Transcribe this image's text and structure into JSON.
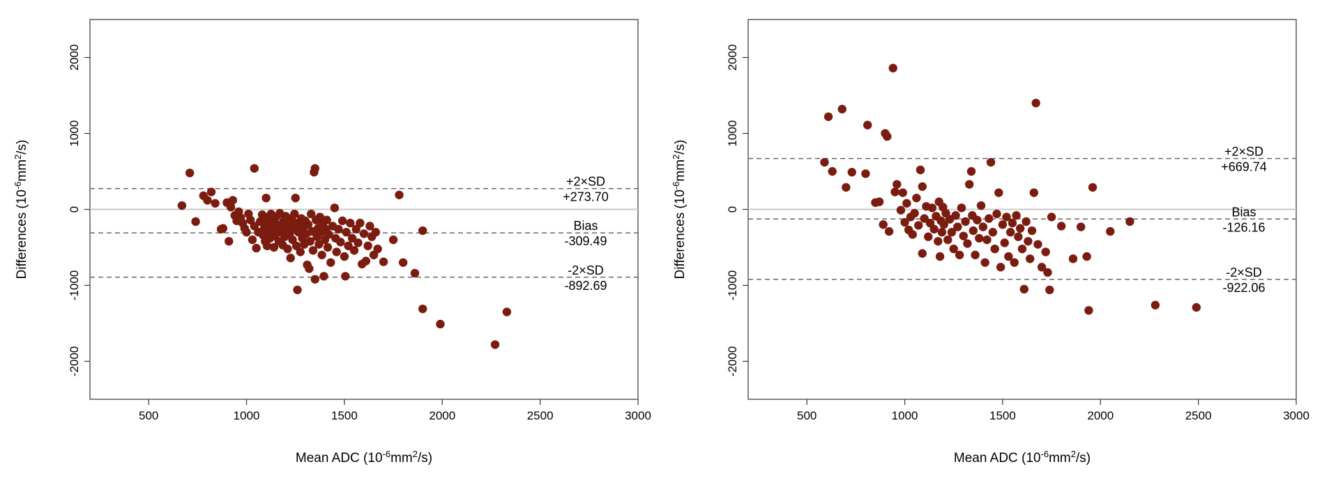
{
  "chart_data": [
    {
      "type": "scatter",
      "xlabel_main": "Mean ADC (10",
      "xlabel_exp": "-6",
      "xlabel_unit_pre": "mm",
      "xlabel_unit_exp": "2",
      "xlabel_tail": "/s)",
      "ylabel_main": "Differences (10",
      "ylabel_exp": "-6",
      "ylabel_unit_pre": "mm",
      "ylabel_unit_exp": "2",
      "ylabel_tail": "/s)",
      "xlim": [
        200,
        3000
      ],
      "ylim": [
        -2500,
        2500
      ],
      "xticks": [
        500,
        1000,
        1500,
        2000,
        2500,
        3000
      ],
      "yticks": [
        -2000,
        -1000,
        0,
        1000,
        2000
      ],
      "point_color": "#7b1c10",
      "zero_line": 0,
      "lines": [
        {
          "label": "+2×SD",
          "value_label": "+273.70",
          "y": 273.7
        },
        {
          "label": "Bias",
          "value_label": "-309.49",
          "y": -309.49
        },
        {
          "label": "-2×SD",
          "value_label": "-892.69",
          "y": -892.69
        }
      ],
      "points": [
        [
          670,
          50
        ],
        [
          710,
          480
        ],
        [
          740,
          -160
        ],
        [
          780,
          180
        ],
        [
          800,
          120
        ],
        [
          820,
          230
        ],
        [
          840,
          80
        ],
        [
          870,
          -260
        ],
        [
          880,
          -250
        ],
        [
          900,
          90
        ],
        [
          910,
          -420
        ],
        [
          920,
          30
        ],
        [
          930,
          120
        ],
        [
          940,
          -80
        ],
        [
          950,
          -150
        ],
        [
          960,
          -30
        ],
        [
          970,
          -110
        ],
        [
          980,
          -180
        ],
        [
          990,
          -250
        ],
        [
          1000,
          -300
        ],
        [
          1010,
          -60
        ],
        [
          1020,
          -140
        ],
        [
          1030,
          -400
        ],
        [
          1040,
          -220
        ],
        [
          1040,
          540
        ],
        [
          1050,
          -510
        ],
        [
          1060,
          -300
        ],
        [
          1070,
          -160
        ],
        [
          1080,
          -70
        ],
        [
          1085,
          -340
        ],
        [
          1090,
          -250
        ],
        [
          1095,
          -420
        ],
        [
          1100,
          -110
        ],
        [
          1100,
          150
        ],
        [
          1105,
          -480
        ],
        [
          1110,
          -200
        ],
        [
          1115,
          -300
        ],
        [
          1120,
          -380
        ],
        [
          1125,
          -60
        ],
        [
          1130,
          -150
        ],
        [
          1135,
          -250
        ],
        [
          1140,
          -500
        ],
        [
          1145,
          -350
        ],
        [
          1150,
          -100
        ],
        [
          1155,
          -200
        ],
        [
          1160,
          -280
        ],
        [
          1165,
          -420
        ],
        [
          1170,
          -50
        ],
        [
          1175,
          -300
        ],
        [
          1180,
          -230
        ],
        [
          1185,
          -470
        ],
        [
          1190,
          -150
        ],
        [
          1195,
          -360
        ],
        [
          1200,
          -90
        ],
        [
          1205,
          -250
        ],
        [
          1210,
          -520
        ],
        [
          1215,
          -190
        ],
        [
          1220,
          -330
        ],
        [
          1225,
          -640
        ],
        [
          1230,
          -120
        ],
        [
          1235,
          -400
        ],
        [
          1240,
          -260
        ],
        [
          1245,
          -60
        ],
        [
          1250,
          -180
        ],
        [
          1250,
          150
        ],
        [
          1255,
          -480
        ],
        [
          1260,
          -1060
        ],
        [
          1265,
          -300
        ],
        [
          1270,
          -210
        ],
        [
          1275,
          -560
        ],
        [
          1280,
          -120
        ],
        [
          1285,
          -380
        ],
        [
          1290,
          -250
        ],
        [
          1295,
          -460
        ],
        [
          1300,
          -150
        ],
        [
          1305,
          -320
        ],
        [
          1310,
          -730
        ],
        [
          1315,
          -200
        ],
        [
          1320,
          -780
        ],
        [
          1325,
          -420
        ],
        [
          1330,
          -60
        ],
        [
          1335,
          -290
        ],
        [
          1340,
          -540
        ],
        [
          1345,
          490
        ],
        [
          1350,
          540
        ],
        [
          1350,
          -920
        ],
        [
          1355,
          -140
        ],
        [
          1360,
          -360
        ],
        [
          1365,
          -250
        ],
        [
          1370,
          -460
        ],
        [
          1375,
          -100
        ],
        [
          1380,
          -300
        ],
        [
          1385,
          -600
        ],
        [
          1390,
          -190
        ],
        [
          1395,
          -880
        ],
        [
          1400,
          -400
        ],
        [
          1405,
          -260
        ],
        [
          1410,
          -140
        ],
        [
          1415,
          -500
        ],
        [
          1420,
          -330
        ],
        [
          1430,
          -700
        ],
        [
          1440,
          -220
        ],
        [
          1450,
          20
        ],
        [
          1455,
          -380
        ],
        [
          1460,
          -560
        ],
        [
          1470,
          -260
        ],
        [
          1480,
          -430
        ],
        [
          1490,
          -150
        ],
        [
          1500,
          -620
        ],
        [
          1505,
          -880
        ],
        [
          1510,
          -300
        ],
        [
          1520,
          -480
        ],
        [
          1530,
          -180
        ],
        [
          1540,
          -380
        ],
        [
          1550,
          -540
        ],
        [
          1560,
          -260
        ],
        [
          1570,
          -440
        ],
        [
          1580,
          -180
        ],
        [
          1590,
          -720
        ],
        [
          1600,
          -320
        ],
        [
          1610,
          -680
        ],
        [
          1620,
          -480
        ],
        [
          1630,
          -220
        ],
        [
          1640,
          -360
        ],
        [
          1650,
          -600
        ],
        [
          1660,
          -300
        ],
        [
          1670,
          -520
        ],
        [
          1700,
          -690
        ],
        [
          1750,
          -400
        ],
        [
          1780,
          190
        ],
        [
          1800,
          -700
        ],
        [
          1860,
          -840
        ],
        [
          1900,
          -280
        ],
        [
          1900,
          -1310
        ],
        [
          1990,
          -1510
        ],
        [
          2270,
          -1780
        ],
        [
          2330,
          -1350
        ]
      ]
    },
    {
      "type": "scatter",
      "xlabel_main": "Mean ADC (10",
      "xlabel_exp": "-6",
      "xlabel_unit_pre": "mm",
      "xlabel_unit_exp": "2",
      "xlabel_tail": "/s)",
      "ylabel_main": "Differences (10",
      "ylabel_exp": "-6",
      "ylabel_unit_pre": "mm",
      "ylabel_unit_exp": "2",
      "ylabel_tail": "/s)",
      "xlim": [
        200,
        3000
      ],
      "ylim": [
        -2500,
        2500
      ],
      "xticks": [
        500,
        1000,
        1500,
        2000,
        2500,
        3000
      ],
      "yticks": [
        -2000,
        -1000,
        0,
        1000,
        2000
      ],
      "point_color": "#7b1c10",
      "zero_line": 0,
      "lines": [
        {
          "label": "+2×SD",
          "value_label": "+669.74",
          "y": 669.74
        },
        {
          "label": "Bias",
          "value_label": "-126.16",
          "y": -126.16
        },
        {
          "label": "-2×SD",
          "value_label": "-922.06",
          "y": -922.06
        }
      ],
      "points": [
        [
          590,
          620
        ],
        [
          610,
          1220
        ],
        [
          630,
          500
        ],
        [
          680,
          1320
        ],
        [
          700,
          290
        ],
        [
          730,
          490
        ],
        [
          800,
          470
        ],
        [
          810,
          1110
        ],
        [
          850,
          90
        ],
        [
          870,
          100
        ],
        [
          890,
          -200
        ],
        [
          900,
          1000
        ],
        [
          910,
          960
        ],
        [
          920,
          -290
        ],
        [
          940,
          1860
        ],
        [
          950,
          230
        ],
        [
          960,
          330
        ],
        [
          980,
          -10
        ],
        [
          990,
          220
        ],
        [
          1000,
          -170
        ],
        [
          1010,
          80
        ],
        [
          1020,
          -270
        ],
        [
          1030,
          -100
        ],
        [
          1040,
          -330
        ],
        [
          1050,
          -50
        ],
        [
          1060,
          150
        ],
        [
          1070,
          -210
        ],
        [
          1080,
          520
        ],
        [
          1090,
          300
        ],
        [
          1090,
          -580
        ],
        [
          1100,
          -120
        ],
        [
          1110,
          40
        ],
        [
          1120,
          -360
        ],
        [
          1130,
          -180
        ],
        [
          1140,
          20
        ],
        [
          1150,
          -260
        ],
        [
          1160,
          -90
        ],
        [
          1170,
          -420
        ],
        [
          1175,
          100
        ],
        [
          1180,
          -620
        ],
        [
          1185,
          -150
        ],
        [
          1190,
          -300
        ],
        [
          1195,
          30
        ],
        [
          1200,
          -200
        ],
        [
          1210,
          -50
        ],
        [
          1220,
          -400
        ],
        [
          1230,
          -130
        ],
        [
          1240,
          -300
        ],
        [
          1250,
          -520
        ],
        [
          1260,
          -80
        ],
        [
          1270,
          -230
        ],
        [
          1280,
          -600
        ],
        [
          1290,
          20
        ],
        [
          1300,
          -350
        ],
        [
          1310,
          -160
        ],
        [
          1320,
          -450
        ],
        [
          1330,
          330
        ],
        [
          1340,
          500
        ],
        [
          1345,
          -80
        ],
        [
          1350,
          -280
        ],
        [
          1360,
          -600
        ],
        [
          1370,
          -140
        ],
        [
          1380,
          -380
        ],
        [
          1390,
          50
        ],
        [
          1400,
          -230
        ],
        [
          1410,
          -700
        ],
        [
          1420,
          -400
        ],
        [
          1430,
          -120
        ],
        [
          1440,
          620
        ],
        [
          1450,
          -300
        ],
        [
          1460,
          -520
        ],
        [
          1470,
          -60
        ],
        [
          1480,
          220
        ],
        [
          1490,
          -760
        ],
        [
          1500,
          -200
        ],
        [
          1510,
          -440
        ],
        [
          1520,
          -100
        ],
        [
          1530,
          -620
        ],
        [
          1540,
          -300
        ],
        [
          1550,
          -180
        ],
        [
          1560,
          -700
        ],
        [
          1570,
          -80
        ],
        [
          1580,
          -360
        ],
        [
          1590,
          -250
        ],
        [
          1600,
          -520
        ],
        [
          1610,
          -1050
        ],
        [
          1620,
          -160
        ],
        [
          1630,
          -420
        ],
        [
          1640,
          -650
        ],
        [
          1650,
          -280
        ],
        [
          1660,
          220
        ],
        [
          1670,
          1400
        ],
        [
          1680,
          -460
        ],
        [
          1700,
          -760
        ],
        [
          1720,
          -560
        ],
        [
          1730,
          -830
        ],
        [
          1740,
          -1060
        ],
        [
          1750,
          -100
        ],
        [
          1800,
          -220
        ],
        [
          1860,
          -650
        ],
        [
          1900,
          -230
        ],
        [
          1930,
          -620
        ],
        [
          1940,
          -1330
        ],
        [
          1960,
          290
        ],
        [
          2050,
          -290
        ],
        [
          2150,
          -160
        ],
        [
          2280,
          -1260
        ],
        [
          2490,
          -1290
        ]
      ]
    }
  ]
}
